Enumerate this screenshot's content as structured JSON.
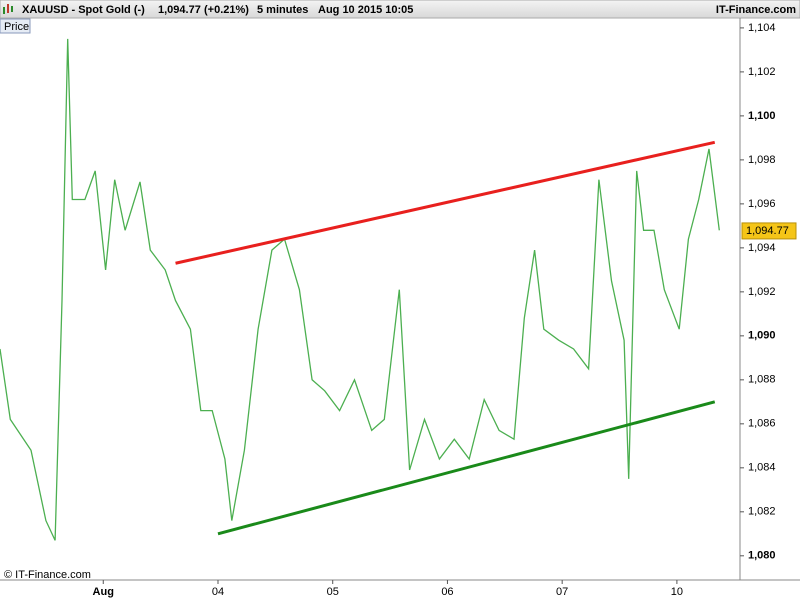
{
  "header": {
    "symbol": "XAUUSD - Spot Gold (-)",
    "change": "(+0.21%)",
    "interval": "5 minutes",
    "datetime": "Aug 10 2015 10:05",
    "brand": "IT-Finance.com"
  },
  "chart_data": {
    "type": "line",
    "panel_label": "Price",
    "copyright": "© IT-Finance.com",
    "color": "#4caf50",
    "x": [
      -0.9,
      -0.81,
      -0.63,
      -0.5,
      -0.42,
      -0.36,
      -0.31,
      -0.27,
      -0.16,
      -0.07,
      0.02,
      0.1,
      0.19,
      0.32,
      0.41,
      0.54,
      0.63,
      0.76,
      0.85,
      0.95,
      1.06,
      1.12,
      1.23,
      1.35,
      1.47,
      1.58,
      1.71,
      1.82,
      1.93,
      2.06,
      2.19,
      2.34,
      2.45,
      2.58,
      2.67,
      2.8,
      2.93,
      3.06,
      3.19,
      3.32,
      3.45,
      3.58,
      3.67,
      3.76,
      3.84,
      3.97,
      4.1,
      4.23,
      4.32,
      4.43,
      4.54,
      4.58,
      4.65,
      4.71,
      4.8,
      4.89,
      5.02,
      5.1,
      5.19,
      5.28,
      5.37
    ],
    "values": [
      1089.4,
      1086.2,
      1084.8,
      1081.6,
      1080.7,
      1091.6,
      1103.5,
      1096.2,
      1096.2,
      1097.5,
      1093,
      1097.1,
      1094.8,
      1097,
      1093.9,
      1093,
      1091.6,
      1090.3,
      1086.6,
      1086.6,
      1084.4,
      1081.6,
      1084.8,
      1090.3,
      1093.9,
      1094.4,
      1092.1,
      1088,
      1087.5,
      1086.6,
      1088,
      1085.7,
      1086.2,
      1092.1,
      1083.9,
      1086.2,
      1084.4,
      1085.3,
      1084.4,
      1087.1,
      1085.7,
      1085.3,
      1090.8,
      1093.9,
      1090.3,
      1089.8,
      1089.4,
      1088.5,
      1097.1,
      1092.5,
      1089.8,
      1083.5,
      1097.5,
      1094.8,
      1094.8,
      1092.1,
      1090.3,
      1094.4,
      1096.2,
      1098.5,
      1094.8
    ],
    "trend_lines": [
      {
        "color": "#e8201e",
        "x": [
          0.63,
          5.33
        ],
        "values": [
          1093.3,
          1098.8
        ]
      },
      {
        "color": "#1a8a1a",
        "x": [
          1.0,
          5.33
        ],
        "values": [
          1081.0,
          1087.0
        ]
      }
    ],
    "last_price": {
      "value": 1094.77,
      "label": "1,094.77"
    },
    "xlim": [
      -0.9,
      5.55
    ],
    "xticks": [
      {
        "value": 0,
        "label": "Aug"
      },
      {
        "value": 1,
        "label": "04"
      },
      {
        "value": 2,
        "label": "05"
      },
      {
        "value": 3,
        "label": "06"
      },
      {
        "value": 4,
        "label": "07"
      },
      {
        "value": 5,
        "label": "10"
      }
    ],
    "ylim": [
      1078.9,
      1104.45
    ],
    "yticks": [
      {
        "value": 1080,
        "label": "1,080"
      },
      {
        "value": 1082,
        "label": "1,082"
      },
      {
        "value": 1084,
        "label": "1,084"
      },
      {
        "value": 1086,
        "label": "1,086"
      },
      {
        "value": 1088,
        "label": "1,088"
      },
      {
        "value": 1090,
        "label": "1,090"
      },
      {
        "value": 1092,
        "label": "1,092"
      },
      {
        "value": 1094,
        "label": "1,094"
      },
      {
        "value": 1096,
        "label": "1,096"
      },
      {
        "value": 1098,
        "label": "1,098"
      },
      {
        "value": 1100,
        "label": "1,100"
      },
      {
        "value": 1102,
        "label": "1,102"
      },
      {
        "value": 1104,
        "label": "1,104"
      }
    ]
  }
}
